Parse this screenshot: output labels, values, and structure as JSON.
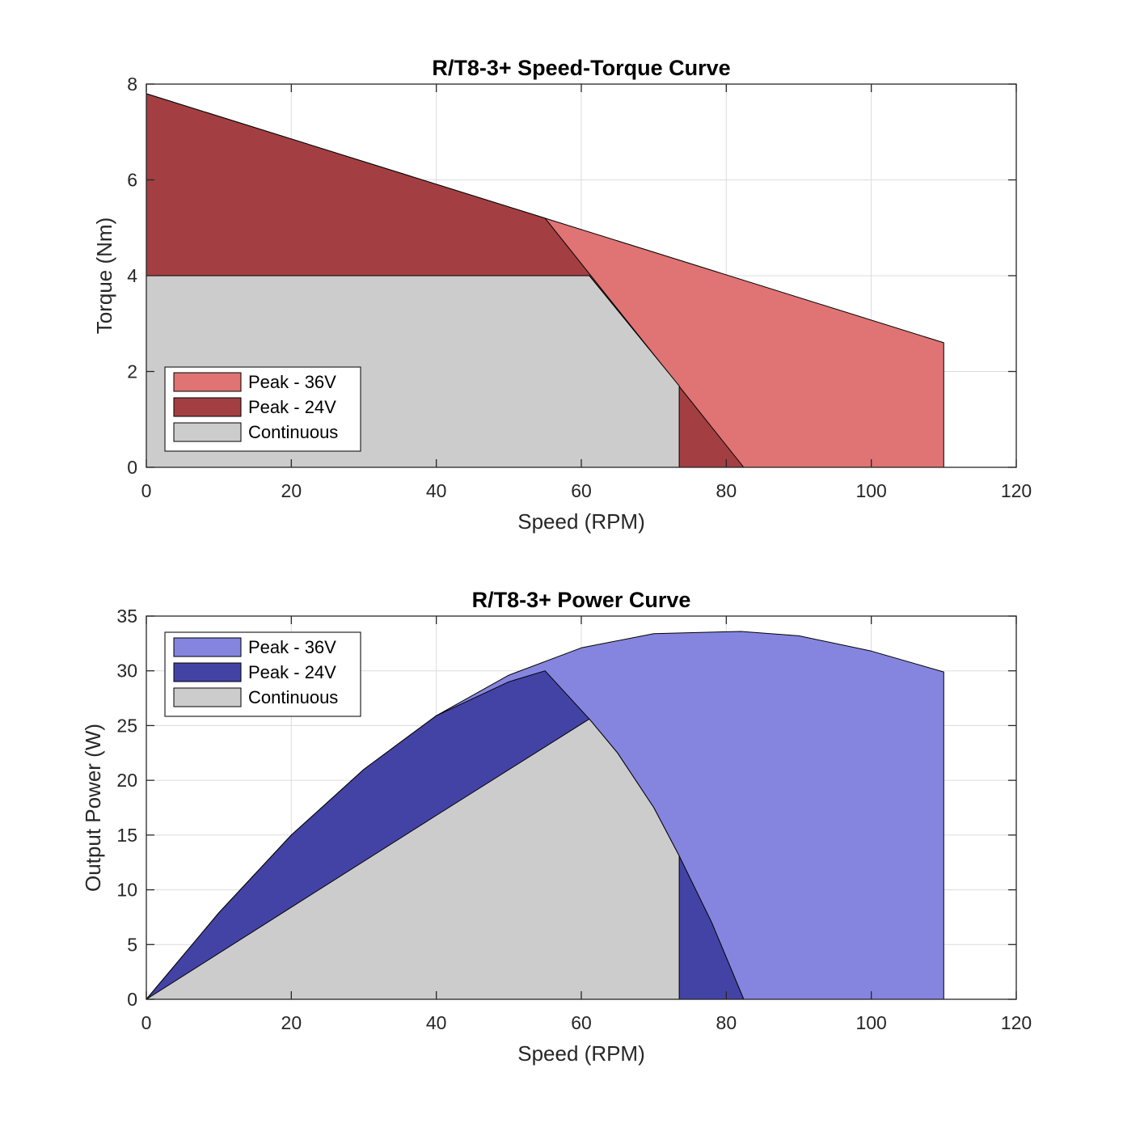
{
  "chart_data": [
    {
      "type": "area",
      "title": "R/T8-3+ Speed-Torque Curve",
      "xlabel": "Speed (RPM)",
      "ylabel": "Torque (Nm)",
      "xlim": [
        0,
        120
      ],
      "ylim": [
        0,
        8
      ],
      "xticks": [
        0,
        20,
        40,
        60,
        80,
        100,
        120
      ],
      "yticks": [
        0,
        2,
        4,
        6,
        8
      ],
      "grid": true,
      "legend_position": "bottom-left",
      "legend": [
        "Peak - 36V",
        "Peak - 24V",
        "Continuous"
      ],
      "series": [
        {
          "name": "Peak - 36V",
          "color": "#e07373",
          "points": [
            [
              0,
              0
            ],
            [
              0,
              7.8
            ],
            [
              110,
              2.6
            ],
            [
              110,
              0
            ]
          ]
        },
        {
          "name": "Peak - 24V",
          "color": "#a33f42",
          "points": [
            [
              0,
              0
            ],
            [
              0,
              7.8
            ],
            [
              55,
              5.2
            ],
            [
              82.4,
              0
            ]
          ]
        },
        {
          "name": "Continuous",
          "color": "#cccccc",
          "points": [
            [
              0,
              0
            ],
            [
              0,
              4.0
            ],
            [
              61.1,
              4.0
            ],
            [
              73.5,
              1.7
            ],
            [
              73.5,
              0
            ]
          ]
        }
      ]
    },
    {
      "type": "area",
      "title": "R/T8-3+ Power Curve",
      "xlabel": "Speed (RPM)",
      "ylabel": "Output Power (W)",
      "xlim": [
        0,
        120
      ],
      "ylim": [
        0,
        35
      ],
      "xticks": [
        0,
        20,
        40,
        60,
        80,
        100,
        120
      ],
      "yticks": [
        0,
        5,
        10,
        15,
        20,
        25,
        30,
        35
      ],
      "grid": true,
      "legend_position": "top-left",
      "legend": [
        "Peak - 36V",
        "Peak - 24V",
        "Continuous"
      ],
      "series": [
        {
          "name": "Peak - 36V",
          "color": "#8585e0",
          "points": [
            [
              0,
              0
            ],
            [
              10,
              7.9
            ],
            [
              20,
              15.0
            ],
            [
              30,
              21.0
            ],
            [
              40,
              25.9
            ],
            [
              50,
              29.6
            ],
            [
              60,
              32.1
            ],
            [
              70,
              33.4
            ],
            [
              82,
              33.6
            ],
            [
              90,
              33.2
            ],
            [
              100,
              31.8
            ],
            [
              110,
              29.9
            ],
            [
              110,
              0
            ]
          ]
        },
        {
          "name": "Peak - 24V",
          "color": "#4343a6",
          "points": [
            [
              0,
              0
            ],
            [
              10,
              7.9
            ],
            [
              20,
              15.0
            ],
            [
              30,
              21.0
            ],
            [
              40,
              25.9
            ],
            [
              50,
              29.0
            ],
            [
              55,
              30.0
            ],
            [
              61.1,
              25.6
            ],
            [
              65,
              22.5
            ],
            [
              70,
              17.5
            ],
            [
              73.5,
              13.1
            ],
            [
              78,
              7.0
            ],
            [
              82.4,
              0
            ]
          ]
        },
        {
          "name": "Continuous",
          "color": "#cccccc",
          "points": [
            [
              0,
              0
            ],
            [
              20,
              8.4
            ],
            [
              40,
              16.8
            ],
            [
              61.1,
              25.6
            ],
            [
              65,
              22.5
            ],
            [
              70,
              17.5
            ],
            [
              73.5,
              13.1
            ],
            [
              73.5,
              0
            ]
          ]
        }
      ]
    }
  ]
}
